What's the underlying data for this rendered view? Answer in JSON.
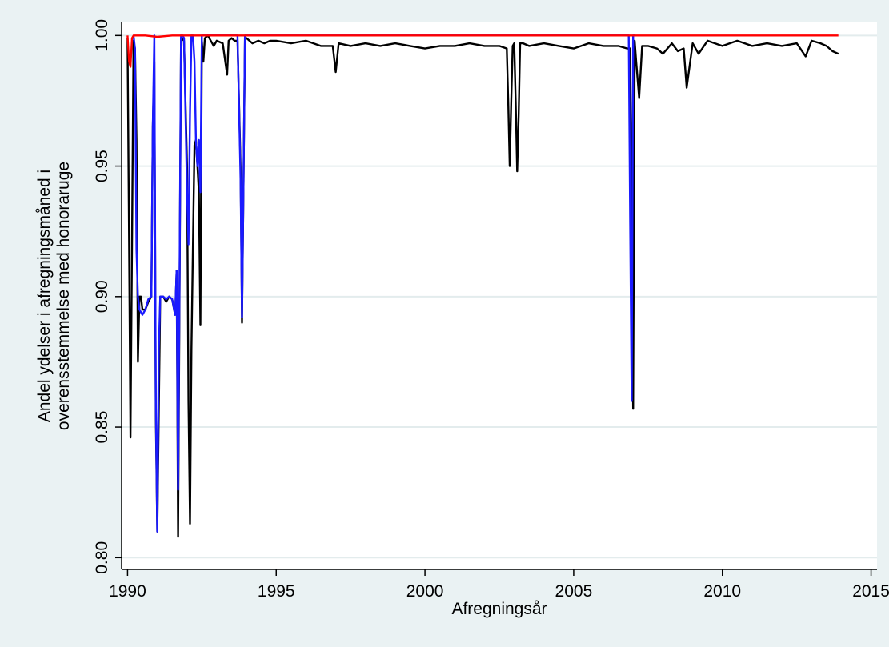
{
  "chart_data": {
    "type": "line",
    "title": "",
    "xlabel": "Afregningsår",
    "ylabel_lines": [
      "Andel ydelser i afregningsmåned i",
      "overensstemmelse med honoraruge"
    ],
    "xlim": [
      1989.8,
      2015.2
    ],
    "ylim": [
      0.7955,
      1.005
    ],
    "xticks": [
      1990,
      1995,
      2000,
      2005,
      2010,
      2015
    ],
    "yticks": [
      0.8,
      0.85,
      0.9,
      0.95,
      1.0
    ],
    "ytick_labels": [
      "0.80",
      "0.85",
      "0.90",
      "0.95",
      "1.00"
    ],
    "grid": true,
    "legend": "none",
    "colors": {
      "background": "#eaf2f3",
      "plot_area": "#ffffff",
      "grid": "#e3eced"
    },
    "series": [
      {
        "color": "#000000",
        "x": [
          1990.0,
          1990.05,
          1990.1,
          1990.15,
          1990.2,
          1990.25,
          1990.3,
          1990.35,
          1990.4,
          1990.45,
          1990.5,
          1990.6,
          1990.7,
          1990.8,
          1990.85,
          1990.9,
          1990.95,
          1991.0,
          1991.1,
          1991.2,
          1991.3,
          1991.4,
          1991.5,
          1991.6,
          1991.65,
          1991.7,
          1991.75,
          1991.8,
          1991.9,
          1992.0,
          1992.05,
          1992.1,
          1992.15,
          1992.2,
          1992.25,
          1992.3,
          1992.35,
          1992.4,
          1992.45,
          1992.5,
          1992.55,
          1992.6,
          1992.7,
          1992.8,
          1992.9,
          1993.0,
          1993.2,
          1993.35,
          1993.4,
          1993.5,
          1993.6,
          1993.7,
          1993.8,
          1993.85,
          1993.9,
          1993.95,
          1994.0,
          1994.2,
          1994.4,
          1994.6,
          1994.8,
          1995.0,
          1995.5,
          1996.0,
          1996.5,
          1996.9,
          1997.0,
          1997.1,
          1997.5,
          1998.0,
          1998.5,
          1999.0,
          1999.5,
          2000.0,
          2000.5,
          2001.0,
          2001.5,
          2002.0,
          2002.5,
          2002.75,
          2002.8,
          2002.85,
          2002.9,
          2002.95,
          2003.0,
          2003.05,
          2003.1,
          2003.15,
          2003.2,
          2003.3,
          2003.5,
          2004.0,
          2004.5,
          2005.0,
          2005.5,
          2006.0,
          2006.5,
          2006.8,
          2006.9,
          2006.95,
          2007.0,
          2007.05,
          2007.1,
          2007.2,
          2007.3,
          2007.5,
          2007.8,
          2008.0,
          2008.3,
          2008.5,
          2008.7,
          2008.8,
          2009.0,
          2009.2,
          2009.5,
          2010.0,
          2010.5,
          2011.0,
          2011.5,
          2012.0,
          2012.5,
          2012.8,
          2013.0,
          2013.3,
          2013.5,
          2013.7,
          2013.9
        ],
        "y": [
          0.999,
          0.923,
          0.846,
          0.92,
          0.998,
          0.995,
          0.96,
          0.875,
          0.9,
          0.9,
          0.895,
          0.895,
          0.898,
          0.9,
          0.965,
          0.99,
          0.855,
          0.81,
          0.9,
          0.9,
          0.898,
          0.9,
          0.899,
          0.893,
          0.91,
          0.808,
          0.905,
          0.999,
          0.998,
          0.95,
          0.86,
          0.813,
          0.88,
          0.92,
          0.958,
          0.96,
          0.95,
          0.94,
          0.889,
          0.998,
          0.99,
          0.999,
          1.0,
          0.998,
          0.996,
          0.998,
          0.997,
          0.985,
          0.998,
          0.999,
          0.998,
          0.998,
          0.95,
          0.89,
          0.945,
          0.999,
          0.999,
          0.997,
          0.998,
          0.997,
          0.998,
          0.998,
          0.997,
          0.998,
          0.996,
          0.996,
          0.986,
          0.997,
          0.996,
          0.997,
          0.996,
          0.997,
          0.996,
          0.995,
          0.996,
          0.996,
          0.997,
          0.996,
          0.996,
          0.995,
          0.975,
          0.95,
          0.975,
          0.996,
          0.997,
          0.975,
          0.948,
          0.97,
          0.997,
          0.997,
          0.996,
          0.997,
          0.996,
          0.995,
          0.997,
          0.996,
          0.996,
          0.995,
          0.995,
          0.927,
          0.857,
          0.998,
          0.99,
          0.976,
          0.996,
          0.996,
          0.995,
          0.993,
          0.997,
          0.994,
          0.995,
          0.98,
          0.997,
          0.993,
          0.998,
          0.996,
          0.998,
          0.996,
          0.997,
          0.996,
          0.997,
          0.992,
          0.998,
          0.997,
          0.996,
          0.994,
          0.993
        ]
      },
      {
        "color": "#1a1aff",
        "x": [
          1990.2,
          1990.25,
          1990.3,
          1990.35,
          1990.4,
          1990.5,
          1990.6,
          1990.7,
          1990.8,
          1990.85,
          1990.9,
          1990.95,
          1991.0,
          1991.05,
          1991.1,
          1991.2,
          1991.3,
          1991.4,
          1991.5,
          1991.6,
          1991.65,
          1991.7,
          1991.75,
          1991.8,
          1991.85,
          1991.9,
          1992.0,
          1992.05,
          1992.1,
          1992.15,
          1992.2,
          1992.25,
          1992.3,
          1992.35,
          1992.4,
          1992.45,
          1992.5,
          1992.55,
          1993.7,
          1993.8,
          1993.85,
          1993.9,
          1993.95,
          2006.85,
          2006.9,
          2006.95,
          2007.0,
          2007.05
        ],
        "y": [
          1.0,
          0.995,
          0.918,
          0.9,
          0.895,
          0.893,
          0.895,
          0.899,
          0.9,
          0.965,
          1.0,
          0.86,
          0.81,
          0.88,
          0.9,
          0.9,
          0.899,
          0.9,
          0.899,
          0.893,
          0.91,
          0.826,
          0.91,
          1.0,
          1.0,
          0.999,
          0.94,
          0.92,
          0.97,
          1.0,
          1.0,
          0.99,
          0.96,
          0.95,
          0.96,
          0.94,
          1.0,
          1.0,
          1.0,
          0.945,
          0.892,
          0.945,
          1.0,
          1.0,
          0.928,
          0.86,
          1.0,
          1.0
        ]
      },
      {
        "color": "#ff0000",
        "x": [
          1990.0,
          1990.05,
          1990.1,
          1990.15,
          1990.2,
          1990.3,
          1990.6,
          1991.0,
          1991.5,
          1992.0,
          2000.0,
          2005.0,
          2010.0,
          2013.9
        ],
        "y": [
          1.0,
          0.99,
          0.988,
          0.999,
          1.0,
          1.0,
          1.0,
          0.9995,
          1.0,
          1.0,
          1.0,
          1.0,
          1.0,
          1.0
        ]
      }
    ]
  }
}
